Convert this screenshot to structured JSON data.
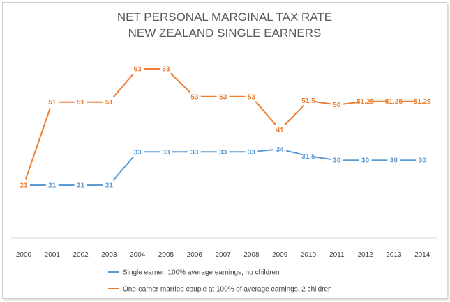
{
  "chart_data": {
    "type": "line",
    "title": [
      "NET PERSONAL MARGINAL TAX RATE",
      "NEW ZEALAND SINGLE EARNERS"
    ],
    "x": [
      "2000",
      "2001",
      "2002",
      "2003",
      "2004",
      "2005",
      "2006",
      "2007",
      "2008",
      "2009",
      "2010",
      "2011",
      "2012",
      "2013",
      "2014"
    ],
    "series": [
      {
        "name": "Single earner, 100% average earnings, no children",
        "color": "#5b9bd5",
        "values": [
          21,
          21,
          21,
          21,
          33,
          33,
          33,
          33,
          33,
          34,
          31.5,
          30,
          30,
          30,
          30
        ],
        "labels": [
          "",
          "21",
          "21",
          "21",
          "33",
          "33",
          "33",
          "33",
          "33",
          "34",
          "31.5",
          "30",
          "30",
          "30",
          "30"
        ]
      },
      {
        "name": "One-earner married couple at 100% of average earnings, 2 children",
        "color": "#ed7d31",
        "values": [
          21,
          51,
          51,
          51,
          63,
          63,
          53,
          53,
          53,
          41,
          51.5,
          50,
          51.25,
          51.25,
          51.25
        ],
        "labels": [
          "21",
          "51",
          "51",
          "51",
          "63",
          "63",
          "53",
          "53",
          "53",
          "41",
          "51.5",
          "50",
          "51.25",
          "51.25",
          "51.25"
        ]
      }
    ],
    "ylim": [
      0,
      75
    ],
    "grid": false,
    "legend": "bottom"
  }
}
